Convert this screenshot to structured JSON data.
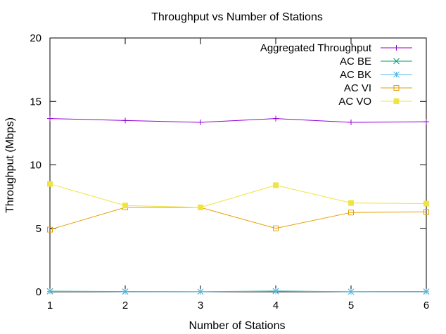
{
  "chart_data": {
    "type": "line",
    "title": "Throughput vs Number of Stations",
    "xlabel": "Number of Stations",
    "ylabel": "Throughput (Mbps)",
    "x": [
      1,
      2,
      3,
      4,
      5,
      6
    ],
    "xlim": [
      1,
      6
    ],
    "ylim": [
      0,
      20
    ],
    "x_ticks": [
      "1",
      "2",
      "3",
      "4",
      "5",
      "6"
    ],
    "y_ticks": [
      "0",
      "5",
      "10",
      "15",
      "20"
    ],
    "grid": false,
    "legend_position": "top-right",
    "series": [
      {
        "name": "Aggregated Throughput",
        "color": "#9400d3",
        "marker": "plus",
        "values": [
          13.65,
          13.5,
          13.35,
          13.65,
          13.35,
          13.4
        ]
      },
      {
        "name": "AC BE",
        "color": "#009e73",
        "marker": "cross",
        "values": [
          0.05,
          0.02,
          0.01,
          0.06,
          0.01,
          0.02
        ]
      },
      {
        "name": "AC BK",
        "color": "#56b4e9",
        "marker": "asterisk",
        "values": [
          0.03,
          0.01,
          0.01,
          0.04,
          0.01,
          0.01
        ]
      },
      {
        "name": "AC VI",
        "color": "#e69f00",
        "marker": "open-square",
        "values": [
          4.9,
          6.65,
          6.65,
          5.0,
          6.25,
          6.3
        ]
      },
      {
        "name": "AC VO",
        "color": "#f0e442",
        "marker": "filled-square",
        "values": [
          8.5,
          6.8,
          6.65,
          8.4,
          7.0,
          6.95
        ]
      }
    ]
  }
}
